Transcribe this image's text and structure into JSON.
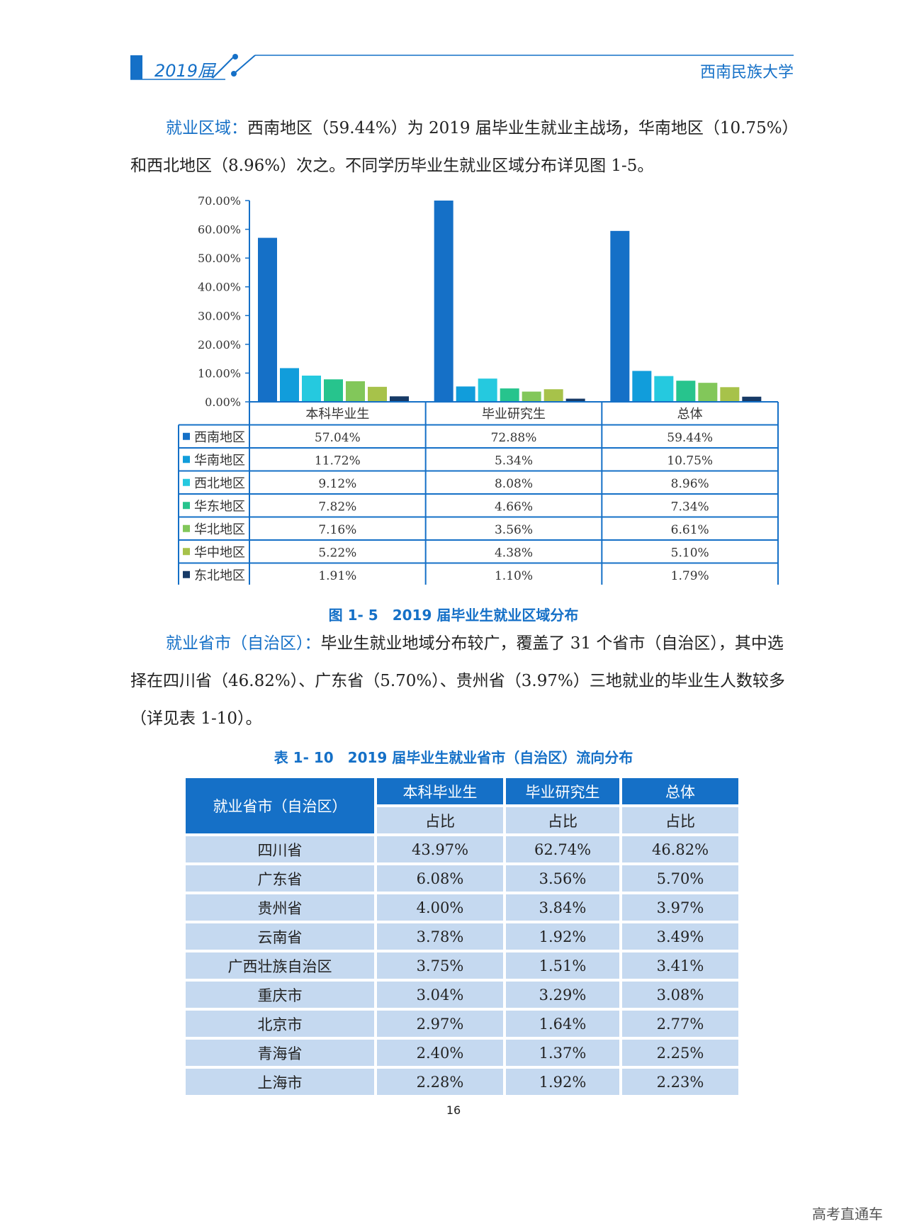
{
  "header": {
    "year": "2019届",
    "school": "西南民族大学"
  },
  "para1": {
    "keyword": "就业区域：",
    "text": "西南地区（59.44%）为 2019 届毕业生就业主战场，华南地区（10.75%）和西北地区（8.96%）次之。不同学历毕业生就业区域分布详见图 1-5。"
  },
  "figure": {
    "caption": "图 1- 5　2019 届毕业生就业区域分布"
  },
  "chart_data": {
    "type": "bar",
    "categories": [
      "本科毕业生",
      "毕业研究生",
      "总体"
    ],
    "ylim": [
      0,
      70
    ],
    "yticks": [
      "0.00%",
      "10.00%",
      "20.00%",
      "30.00%",
      "40.00%",
      "50.00%",
      "60.00%",
      "70.00%"
    ],
    "series": [
      {
        "name": "西南地区",
        "color": "#1570c7",
        "values": [
          57.04,
          72.88,
          59.44
        ],
        "labels": [
          "57.04%",
          "72.88%",
          "59.44%"
        ]
      },
      {
        "name": "华南地区",
        "color": "#119ddb",
        "values": [
          11.72,
          5.34,
          10.75
        ],
        "labels": [
          "11.72%",
          "5.34%",
          "10.75%"
        ]
      },
      {
        "name": "西北地区",
        "color": "#25c9df",
        "values": [
          9.12,
          8.08,
          8.96
        ],
        "labels": [
          "9.12%",
          "8.08%",
          "8.96%"
        ]
      },
      {
        "name": "华东地区",
        "color": "#27c48d",
        "values": [
          7.82,
          4.66,
          7.34
        ],
        "labels": [
          "7.82%",
          "4.66%",
          "7.34%"
        ]
      },
      {
        "name": "华北地区",
        "color": "#82c75a",
        "values": [
          7.16,
          3.56,
          6.61
        ],
        "labels": [
          "7.16%",
          "3.56%",
          "6.61%"
        ]
      },
      {
        "name": "华中地区",
        "color": "#a7c24a",
        "values": [
          5.22,
          4.38,
          5.1
        ],
        "labels": [
          "5.22%",
          "4.38%",
          "5.10%"
        ]
      },
      {
        "name": "东北地区",
        "color": "#173a66",
        "values": [
          1.91,
          1.1,
          1.79
        ],
        "labels": [
          "1.91%",
          "1.10%",
          "1.79%"
        ]
      }
    ]
  },
  "para2": {
    "keyword": "就业省市（自治区）：",
    "text": "毕业生就业地域分布较广，覆盖了 31 个省市（自治区），其中选择在四川省（46.82%）、广东省（5.70%）、贵州省（3.97%）三地就业的毕业生人数较多（详见表 1-10）。"
  },
  "table": {
    "caption": "表 1- 10　2019 届毕业生就业省市（自治区）流向分布",
    "first_header": "就业省市（自治区）",
    "groups": [
      "本科毕业生",
      "毕业研究生",
      "总体"
    ],
    "sub": [
      "占比",
      "占比",
      "占比"
    ],
    "rows": [
      [
        "四川省",
        "43.97%",
        "62.74%",
        "46.82%"
      ],
      [
        "广东省",
        "6.08%",
        "3.56%",
        "5.70%"
      ],
      [
        "贵州省",
        "4.00%",
        "3.84%",
        "3.97%"
      ],
      [
        "云南省",
        "3.78%",
        "1.92%",
        "3.49%"
      ],
      [
        "广西壮族自治区",
        "3.75%",
        "1.51%",
        "3.41%"
      ],
      [
        "重庆市",
        "3.04%",
        "3.29%",
        "3.08%"
      ],
      [
        "北京市",
        "2.97%",
        "1.64%",
        "2.77%"
      ],
      [
        "青海省",
        "2.40%",
        "1.37%",
        "2.25%"
      ],
      [
        "上海市",
        "2.28%",
        "1.92%",
        "2.23%"
      ]
    ]
  },
  "page_number": "16",
  "watermark": "高考直通车"
}
